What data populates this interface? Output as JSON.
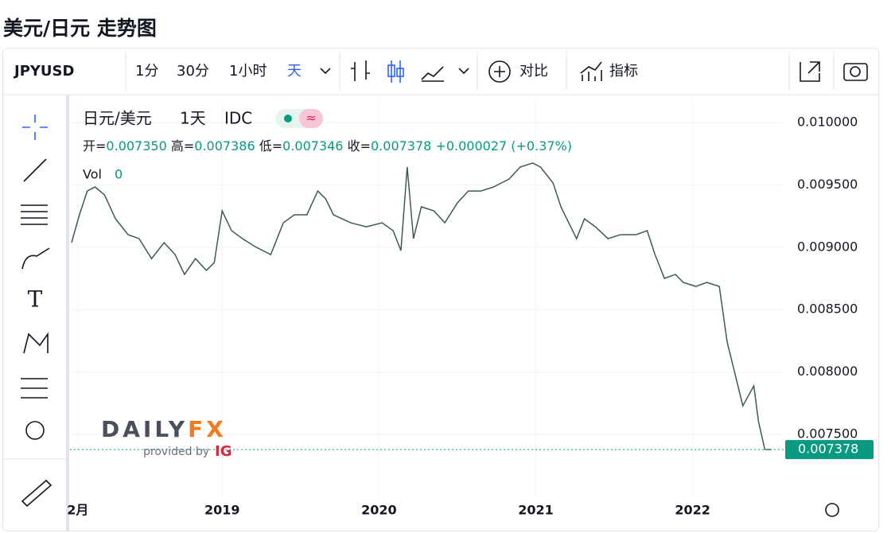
{
  "header": {
    "title": "美元/日元 走势图"
  },
  "toolbar": {
    "symbol": "JPYUSD",
    "intervals": [
      "1分",
      "30分",
      "1小时",
      "天"
    ],
    "compare": "对比",
    "indicators": "指标"
  },
  "legend": {
    "interval": "1天",
    "source": "IDC",
    "ohlc": [
      [
        "开=",
        "0.007350"
      ],
      [
        "高=",
        "0.007386"
      ],
      [
        "低=",
        "0.007346"
      ],
      [
        "收=",
        "0.007378"
      ]
    ],
    "change": "+0.000027 (+0.37%)",
    "volume_label": "Vol",
    "volume": "0"
  },
  "watermark": {
    "brand_a": "DAILY",
    "brand_b": "FX",
    "provided": "provided by",
    "ig": "IG"
  },
  "chart_data": {
    "type": "line",
    "x": [
      2018.04,
      2018.09,
      2018.14,
      2018.19,
      2018.25,
      2018.32,
      2018.4,
      2018.47,
      2018.55,
      2018.63,
      2018.7,
      2018.76,
      2018.83,
      2018.9,
      2018.95,
      2019.0,
      2019.06,
      2019.13,
      2019.21,
      2019.31,
      2019.39,
      2019.46,
      2019.54,
      2019.61,
      2019.66,
      2019.71,
      2019.82,
      2019.92,
      2020.02,
      2020.09,
      2020.14,
      2020.18,
      2020.22,
      2020.27,
      2020.35,
      2020.42,
      2020.5,
      2020.57,
      2020.65,
      2020.73,
      2020.83,
      2020.9,
      2020.98,
      2021.03,
      2021.11,
      2021.16,
      2021.21,
      2021.26,
      2021.31,
      2021.38,
      2021.46,
      2021.54,
      2021.64,
      2021.71,
      2021.76,
      2021.82,
      2021.89,
      2021.94,
      2022.02,
      2022.09,
      2022.17,
      2022.22,
      2022.27,
      2022.32,
      2022.39,
      2022.42,
      2022.46,
      2022.5
    ],
    "series": [
      {
        "name": "日元/美元",
        "color": "#3d5a52",
        "values": [
          0.009037,
          0.00926,
          0.009451,
          0.009483,
          0.00942,
          0.009228,
          0.009101,
          0.009069,
          0.008909,
          0.009037,
          0.008941,
          0.008782,
          0.008909,
          0.008814,
          0.008877,
          0.009292,
          0.009133,
          0.009069,
          0.009005,
          0.008941,
          0.009196,
          0.00926,
          0.00926,
          0.009451,
          0.009388,
          0.00926,
          0.009196,
          0.009164,
          0.009196,
          0.009133,
          0.008973,
          0.009643,
          0.009069,
          0.009324,
          0.009292,
          0.009196,
          0.009356,
          0.009451,
          0.009451,
          0.009483,
          0.009547,
          0.009643,
          0.009675,
          0.009643,
          0.009515,
          0.009324,
          0.009196,
          0.009069,
          0.009228,
          0.009164,
          0.009069,
          0.009101,
          0.009101,
          0.009133,
          0.008941,
          0.00875,
          0.008782,
          0.008718,
          0.008686,
          0.008718,
          0.008686,
          0.00824,
          0.007985,
          0.007729,
          0.007889,
          0.007602,
          0.007379,
          0.007378
        ]
      }
    ],
    "last_price": 0.007378,
    "last_price_color": "#089981",
    "xlim": [
      2018.03,
      2022.58
    ],
    "xticks": [
      {
        "value": 2018.08,
        "label": "2月"
      },
      2019,
      2020,
      2021,
      2022
    ],
    "ylim": [
      0.006996,
      0.010185
    ],
    "yticks": [
      {
        "value": 0.0075,
        "label": "0.007500"
      },
      {
        "value": 0.008,
        "label": "0.008000"
      },
      {
        "value": 0.0085,
        "label": "0.008500"
      },
      {
        "value": 0.009,
        "label": "0.009000"
      },
      {
        "value": 0.0095,
        "label": "0.009500"
      },
      {
        "value": 0.01,
        "label": "0.010000"
      }
    ],
    "grid": true
  }
}
